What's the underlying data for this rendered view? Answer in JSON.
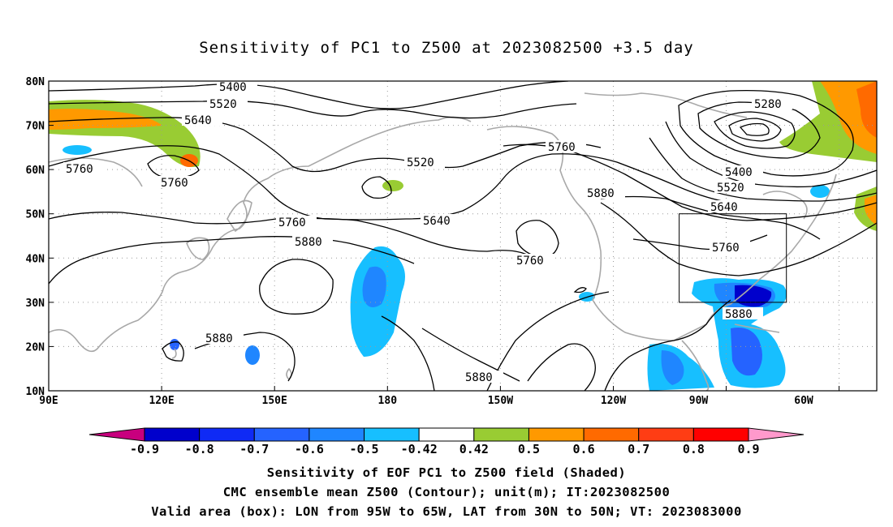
{
  "title": "Sensitivity of PC1 to Z500 at 2023082500 +3.5 day",
  "map": {
    "lon_labels": [
      "90E",
      "120E",
      "150E",
      "180",
      "150W",
      "120W",
      "90W",
      "60W"
    ],
    "lat_labels": [
      "80N",
      "70N",
      "60N",
      "50N",
      "40N",
      "30N",
      "20N",
      "10N"
    ],
    "extent": {
      "lon_min": 90,
      "lon_max": 310,
      "lat_min": 10,
      "lat_max": 80
    },
    "contour_interval_m": 60,
    "grid": "dotted",
    "contour_labels": [
      "5400",
      "5520",
      "5640",
      "5760",
      "5760",
      "5520",
      "5760",
      "5640",
      "5880",
      "5760",
      "5880",
      "5280",
      "5400",
      "5520",
      "5640",
      "5760",
      "5880",
      "5880",
      "5880"
    ],
    "valid_box": {
      "lon": [
        265,
        295
      ],
      "lat": [
        30,
        50
      ]
    },
    "colors": {
      "coast": "#a8a8a8",
      "contour": "#000000",
      "grid": "#9a9a9a"
    }
  },
  "colorbar": {
    "labels": [
      "-0.9",
      "-0.8",
      "-0.7",
      "-0.6",
      "-0.5",
      "-0.42",
      "0.42",
      "0.5",
      "0.6",
      "0.7",
      "0.8",
      "0.9"
    ],
    "colors": [
      "#c8007e",
      "#0000cc",
      "#0f2af5",
      "#2563ff",
      "#1f86ff",
      "#17bfff",
      "#ffffff",
      "#99cc33",
      "#ff9900",
      "#ff6a00",
      "#ff3d14",
      "#ff0000",
      "#ff99cc"
    ]
  },
  "footer": {
    "line1": "Sensitivity of EOF PC1 to Z500 field (Shaded)",
    "line2": "CMC ensemble mean Z500 (Contour); unit(m); IT:2023082500",
    "line3": "Valid area (box): LON from 95W to 65W, LAT from 30N to 50N; VT: 2023083000"
  }
}
